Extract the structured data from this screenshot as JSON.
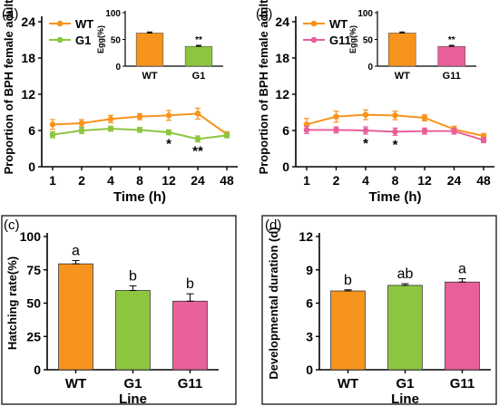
{
  "chart_data": [
    {
      "id": "a",
      "panel_label": "(a)",
      "type": "line",
      "ylabel": "Proportion of BPH female adult",
      "xlabel": "Time (h)",
      "categories": [
        "1",
        "2",
        "4",
        "8",
        "12",
        "24",
        "48"
      ],
      "ylim": [
        0,
        24
      ],
      "yticks": [
        "0",
        "6",
        "12",
        "18",
        "24"
      ],
      "grid": false,
      "legend": "top-left",
      "series": [
        {
          "name": "WT",
          "color": "#f7941d",
          "values": [
            7.0,
            7.2,
            7.9,
            8.3,
            8.5,
            8.8,
            5.4
          ],
          "errors": [
            0.8,
            0.6,
            0.6,
            0.5,
            0.8,
            0.9,
            0.4
          ]
        },
        {
          "name": "G1",
          "color": "#8cc63f",
          "values": [
            5.3,
            6.0,
            6.3,
            6.1,
            5.7,
            4.6,
            5.2
          ],
          "errors": [
            0.5,
            0.5,
            0.4,
            0.4,
            0.4,
            0.5,
            0.4
          ]
        }
      ],
      "annotations": [
        {
          "category": "12",
          "text": "*"
        },
        {
          "category": "24",
          "text": "**"
        }
      ],
      "inset": {
        "type": "bar",
        "ylabel": "Egg(%)",
        "ylim": [
          0,
          100
        ],
        "yticks": [
          "0",
          "50",
          "100"
        ],
        "categories": [
          "WT",
          "G1"
        ],
        "values": [
          62,
          37
        ],
        "errors": [
          2,
          2
        ],
        "colors": [
          "#f7941d",
          "#8cc63f"
        ],
        "annotations": [
          {
            "category": "G1",
            "text": "**"
          }
        ]
      }
    },
    {
      "id": "b",
      "panel_label": "(b)",
      "type": "line",
      "ylabel": "Proportion of BPH female adult",
      "xlabel": "Time (h)",
      "categories": [
        "1",
        "2",
        "4",
        "8",
        "12",
        "24",
        "48"
      ],
      "ylim": [
        0,
        24
      ],
      "yticks": [
        "0",
        "6",
        "12",
        "18",
        "24"
      ],
      "grid": false,
      "legend": "top-left",
      "series": [
        {
          "name": "WT",
          "color": "#f7941d",
          "values": [
            7.0,
            8.3,
            8.6,
            8.5,
            8.1,
            6.2,
            5.1
          ],
          "errors": [
            1.0,
            0.9,
            0.8,
            0.7,
            0.5,
            0.5,
            0.4
          ]
        },
        {
          "name": "G11",
          "color": "#e8609a",
          "values": [
            6.1,
            6.1,
            6.0,
            5.8,
            5.9,
            5.9,
            4.4
          ],
          "errors": [
            0.6,
            0.5,
            0.6,
            0.6,
            0.5,
            0.5,
            0.4
          ]
        }
      ],
      "annotations": [
        {
          "category": "4",
          "text": "*"
        },
        {
          "category": "8",
          "text": "*"
        }
      ],
      "inset": {
        "type": "bar",
        "ylabel": "Egg(%)",
        "ylim": [
          0,
          100
        ],
        "yticks": [
          "0",
          "50",
          "100"
        ],
        "categories": [
          "WT",
          "G11"
        ],
        "values": [
          62,
          37
        ],
        "errors": [
          2,
          2
        ],
        "colors": [
          "#f7941d",
          "#e8609a"
        ],
        "annotations": [
          {
            "category": "G11",
            "text": "**"
          }
        ]
      }
    },
    {
      "id": "c",
      "panel_label": "(c)",
      "type": "bar",
      "ylabel": "Hatching rate(%)",
      "xlabel": "Line",
      "categories": [
        "WT",
        "G1",
        "G11"
      ],
      "values": [
        79.5,
        59.5,
        51.5
      ],
      "errors": [
        2.5,
        3.5,
        5.5
      ],
      "letters": [
        "a",
        "b",
        "b"
      ],
      "colors": [
        "#f7941d",
        "#8cc63f",
        "#e8609a"
      ],
      "ylim": [
        0,
        100
      ],
      "yticks": [
        "0",
        "25",
        "50",
        "75",
        "100"
      ],
      "grid": false
    },
    {
      "id": "d",
      "panel_label": "(d)",
      "type": "bar",
      "ylabel": "Developmental duration (d)",
      "xlabel": "Line",
      "categories": [
        "WT",
        "G1",
        "G11"
      ],
      "values": [
        7.1,
        7.6,
        7.9
      ],
      "errors": [
        0.1,
        0.15,
        0.3
      ],
      "letters": [
        "b",
        "ab",
        "a"
      ],
      "colors": [
        "#f7941d",
        "#8cc63f",
        "#e8609a"
      ],
      "ylim": [
        0,
        12
      ],
      "yticks": [
        "0",
        "3",
        "6",
        "9",
        "12"
      ],
      "grid": false
    }
  ]
}
